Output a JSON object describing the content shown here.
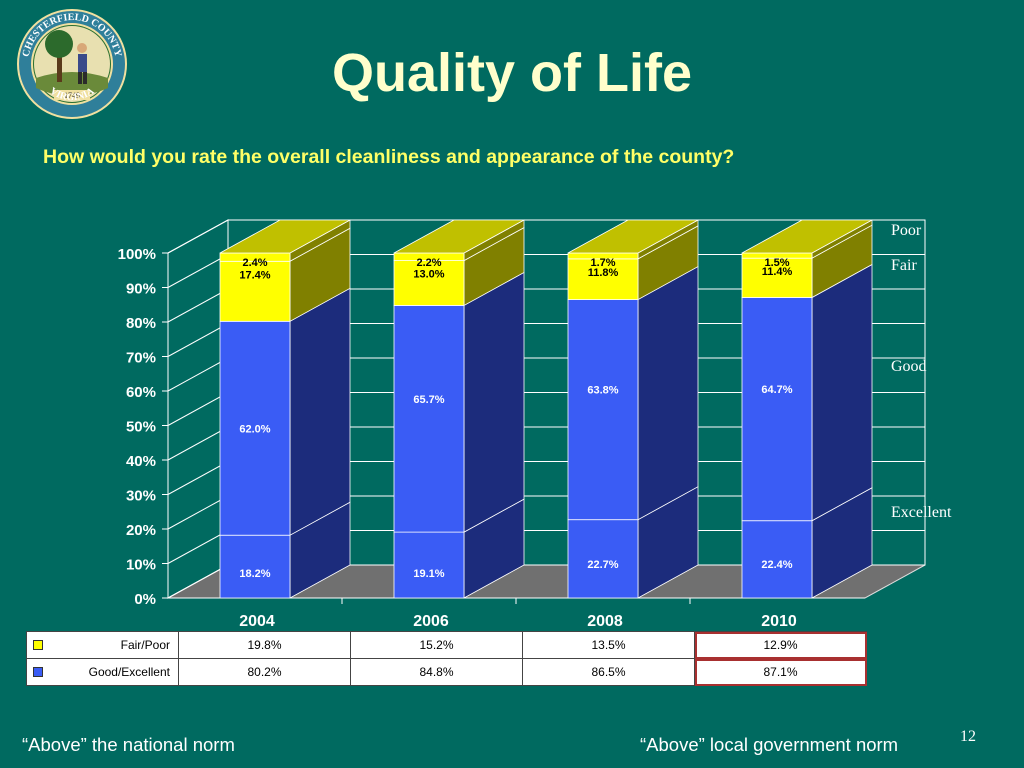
{
  "title": "Quality of Life",
  "question": "How would you rate the overall cleanliness and appearance of the county?",
  "seal": {
    "top_text": "CHESTERFIELD COUNTY",
    "bottom_text": "VIRGINIA",
    "year": "1749"
  },
  "side_labels": [
    "Poor",
    "Fair",
    "Good",
    "Excellent"
  ],
  "chart_data": {
    "type": "bar",
    "stacked": true,
    "three_d": true,
    "categories": [
      "2004",
      "2006",
      "2008",
      "2010"
    ],
    "series": [
      {
        "name": "Excellent",
        "values": [
          18.2,
          19.1,
          22.7,
          22.4
        ],
        "labels": [
          "18.2%",
          "19.1%",
          "22.7%",
          "22.4%"
        ]
      },
      {
        "name": "Good",
        "values": [
          62.0,
          65.7,
          63.8,
          64.7
        ],
        "labels": [
          "62.0%",
          "65.7%",
          "63.8%",
          "64.7%"
        ]
      },
      {
        "name": "Fair",
        "values": [
          17.4,
          13.0,
          11.8,
          11.4
        ],
        "labels": [
          "17.4%",
          "13.0%",
          "11.8%",
          "11.4%"
        ]
      },
      {
        "name": "Poor",
        "values": [
          2.4,
          2.2,
          1.7,
          1.5
        ],
        "labels": [
          "2.4%",
          "2.2%",
          "1.7%",
          "1.5%"
        ]
      }
    ],
    "y_ticks": [
      "0%",
      "10%",
      "20%",
      "30%",
      "40%",
      "50%",
      "60%",
      "70%",
      "80%",
      "90%",
      "100%"
    ],
    "ylim": [
      0,
      100
    ],
    "grid": true,
    "colors": {
      "Excellent": "#3a5cf5",
      "Good": "#3a5cf5",
      "Fair": "#ffff00",
      "Poor": "#ffff00",
      "blue_side": "#1c2c7c",
      "yellow_side": "#808000",
      "yellow_top": "#c0c000",
      "wall": "#006a60",
      "floor": "#707070",
      "grid": "#ffffff"
    }
  },
  "table": {
    "rows": [
      {
        "label": "Fair/Poor",
        "swatch": "#ffff00",
        "values": [
          "19.8%",
          "15.2%",
          "13.5%",
          "12.9%"
        ]
      },
      {
        "label": "Good/Excellent",
        "swatch": "#3a5cf5",
        "values": [
          "80.2%",
          "84.8%",
          "86.5%",
          "87.1%"
        ]
      }
    ]
  },
  "footer_left": "“Above” the national norm",
  "footer_right": "“Above” local government norm",
  "page_number": "12"
}
